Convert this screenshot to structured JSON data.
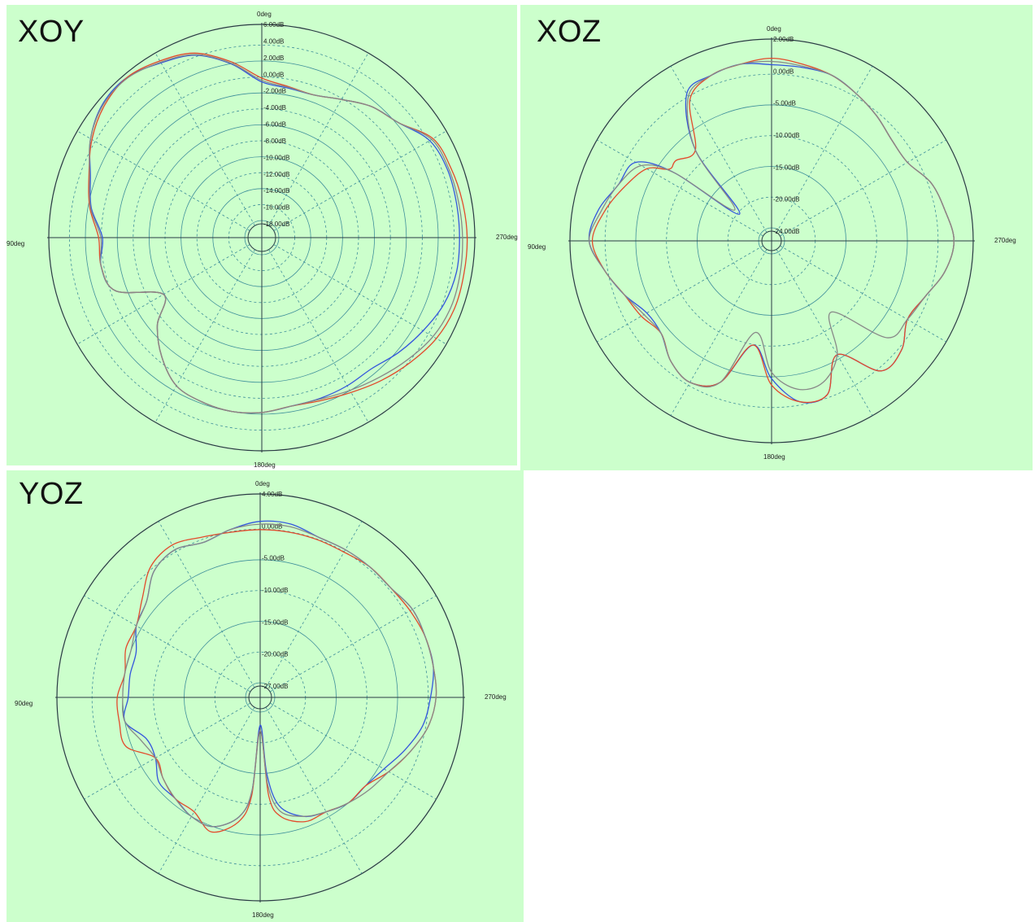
{
  "chart_data": [
    {
      "type": "polar",
      "title": "XOY",
      "angle_labels": {
        "top": "0deg",
        "left": "90deg",
        "right": "270deg",
        "bottom": "180deg"
      },
      "radial_tick_labels": [
        "6.00dB",
        "4.00dB",
        "2.00dB",
        "0.00dB",
        "-2.00dB",
        "-4.00dB",
        "-6.00dB",
        "-8.00dB",
        "-10.00dB",
        "-12.00dB",
        "-14.00dB",
        "-16.00dB",
        "-18.00dB"
      ],
      "rlim": [
        -20,
        6
      ],
      "grid": true,
      "angle_direction": "counterclockwise from top",
      "series": [
        {
          "color": "#3355dd",
          "theta": [
            0,
            10,
            20,
            30,
            40,
            50,
            60,
            70,
            80,
            90,
            100,
            110,
            120,
            130,
            140,
            150,
            160,
            170,
            180,
            190,
            200,
            210,
            220,
            230,
            240,
            250,
            260,
            270,
            280,
            290,
            300,
            310,
            320,
            330,
            340,
            350
          ],
          "r": [
            -1.5,
            1.2,
            3.5,
            4.5,
            5.5,
            5.3,
            4.0,
            2.0,
            0.8,
            -1.0,
            -0.5,
            -1.5,
            -7,
            -4,
            -1.5,
            0.5,
            1.0,
            1.2,
            1.0,
            0.5,
            0.5,
            0.5,
            0.5,
            1.5,
            2.5,
            3.5,
            4.0,
            4.0,
            4.0,
            4.0,
            3.5,
            1.5,
            0.5,
            -1.0,
            -2.0,
            -2.0
          ]
        },
        {
          "color": "#e24a2c",
          "theta": [
            0,
            10,
            20,
            30,
            40,
            50,
            60,
            70,
            80,
            90,
            100,
            110,
            120,
            130,
            140,
            150,
            160,
            170,
            180,
            190,
            200,
            210,
            220,
            230,
            240,
            250,
            260,
            270,
            280,
            290,
            300,
            310,
            320,
            330,
            340,
            350
          ],
          "r": [
            -1.0,
            1.5,
            3.8,
            4.8,
            5.5,
            5.0,
            3.8,
            2.2,
            1.0,
            -0.5,
            -0.5,
            -1.5,
            -7,
            -4,
            -1.5,
            0.5,
            1.0,
            1.2,
            1.0,
            0.5,
            0.8,
            1.5,
            2.5,
            3.5,
            4.5,
            5.0,
            5.0,
            5.0,
            4.8,
            4.5,
            4.0,
            1.5,
            0.5,
            -1.0,
            -2.0,
            -1.8
          ]
        },
        {
          "color": "#888888",
          "theta": [
            0,
            10,
            20,
            30,
            40,
            50,
            60,
            70,
            80,
            90,
            100,
            110,
            120,
            130,
            140,
            150,
            160,
            170,
            180,
            190,
            200,
            210,
            220,
            230,
            240,
            250,
            260,
            270,
            280,
            290,
            300,
            310,
            320,
            330,
            340,
            350
          ],
          "r": [
            -1.3,
            1.3,
            3.6,
            4.6,
            5.4,
            5.2,
            4.0,
            2.1,
            0.9,
            -0.8,
            -0.5,
            -1.5,
            -7,
            -4,
            -1.5,
            0.5,
            1.0,
            1.2,
            1.0,
            0.5,
            0.6,
            1.2,
            2.0,
            3.0,
            4.0,
            4.5,
            4.5,
            4.4,
            4.3,
            4.2,
            3.8,
            1.5,
            0.5,
            -1.0,
            -2.0,
            -1.9
          ]
        }
      ]
    },
    {
      "type": "polar",
      "title": "XOZ",
      "angle_labels": {
        "top": "0deg",
        "left": "90deg",
        "right": "270deg",
        "bottom": "180deg"
      },
      "radial_tick_labels": [
        "2.00dB",
        "0.00dB",
        "-5.00dB",
        "-10.00dB",
        "-15.00dB",
        "-20.00dB",
        "-24.00dB"
      ],
      "rlim": [
        -27,
        3
      ],
      "grid": true,
      "angle_direction": "counterclockwise from top",
      "series": [
        {
          "color": "#3355dd",
          "theta": [
            0,
            10,
            20,
            30,
            40,
            50,
            55,
            60,
            70,
            80,
            90,
            100,
            110,
            120,
            130,
            140,
            150,
            160,
            170,
            180,
            190,
            200,
            210,
            220,
            230,
            240,
            250,
            260,
            270,
            280,
            290,
            300,
            310,
            320,
            330,
            340,
            350
          ],
          "r": [
            -1,
            -0.5,
            -1,
            -2,
            -10,
            -22,
            -10,
            -4,
            -3,
            -1,
            0,
            -2,
            -4,
            -6,
            -6,
            -4,
            -3,
            -5,
            -12,
            -7,
            -3,
            -3,
            -8,
            -2,
            -2,
            -4,
            -3,
            -1,
            0,
            -1,
            -2,
            -4,
            -4,
            -3,
            -2,
            -1,
            -1
          ]
        },
        {
          "color": "#e24a2c",
          "theta": [
            0,
            10,
            20,
            30,
            40,
            50,
            55,
            60,
            70,
            80,
            90,
            100,
            110,
            120,
            130,
            140,
            150,
            160,
            170,
            180,
            190,
            200,
            210,
            220,
            230,
            240,
            250,
            260,
            270,
            280,
            290,
            300,
            310,
            320,
            330,
            340,
            350
          ],
          "r": [
            0,
            -0.5,
            -1,
            -3,
            -10,
            -9,
            -9,
            -6,
            -4,
            -2,
            -0.5,
            -2,
            -4,
            -5,
            -6,
            -4,
            -3,
            -5,
            -12,
            -6,
            -3,
            -3,
            -8,
            -2,
            -2,
            -4,
            -3,
            -1,
            0,
            -1,
            -2,
            -4,
            -4,
            -3,
            -2,
            -1,
            -0.5
          ]
        },
        {
          "color": "#888888",
          "theta": [
            0,
            10,
            20,
            30,
            40,
            50,
            55,
            60,
            70,
            80,
            90,
            100,
            110,
            120,
            130,
            140,
            150,
            160,
            170,
            180,
            190,
            200,
            210,
            220,
            230,
            240,
            250,
            260,
            270,
            280,
            290,
            300,
            310,
            320,
            330,
            340,
            350
          ],
          "r": [
            -0.5,
            -0.5,
            -1,
            -2.5,
            -10,
            -21,
            -10,
            -5,
            -3,
            -1.5,
            0,
            -2,
            -4,
            -5.5,
            -6,
            -4,
            -3,
            -5,
            -14,
            -8,
            -5,
            -5,
            -8,
            -14,
            -5,
            -4,
            -3,
            -1,
            0,
            -1,
            -2,
            -4,
            -4,
            -3,
            -2,
            -1,
            -0.8
          ]
        }
      ]
    },
    {
      "type": "polar",
      "title": "YOZ",
      "angle_labels": {
        "top": "0deg",
        "left": "90deg",
        "right": "270deg",
        "bottom": "180deg"
      },
      "radial_tick_labels": [
        "4.00dB",
        "0.00dB",
        "-5.00dB",
        "-10.00dB",
        "-15.00dB",
        "-20.00dB",
        "-27.00dB"
      ],
      "rlim": [
        -30,
        5
      ],
      "grid": true,
      "angle_direction": "counterclockwise from top",
      "series": [
        {
          "color": "#3355dd",
          "theta": [
            0,
            10,
            20,
            30,
            40,
            50,
            60,
            70,
            80,
            90,
            100,
            110,
            120,
            130,
            140,
            150,
            160,
            170,
            175,
            180,
            185,
            190,
            200,
            210,
            220,
            230,
            240,
            250,
            260,
            270,
            280,
            290,
            300,
            310,
            320,
            330,
            340,
            350
          ],
          "r": [
            0,
            -1,
            -2,
            -1,
            -2,
            -5,
            -6,
            -8,
            -8,
            -8,
            -7,
            -10,
            -10,
            -8,
            -8,
            -7,
            -7,
            -10,
            -15,
            -27,
            -18,
            -12,
            -9,
            -8,
            -7,
            -7,
            -6,
            -4,
            -2,
            -1,
            0,
            0,
            0,
            -1,
            -1,
            -1,
            -1,
            0
          ]
        },
        {
          "color": "#e24a2c",
          "theta": [
            0,
            10,
            20,
            30,
            40,
            50,
            60,
            70,
            80,
            90,
            100,
            110,
            120,
            130,
            140,
            150,
            160,
            170,
            175,
            180,
            185,
            190,
            200,
            210,
            220,
            230,
            240,
            250,
            260,
            270,
            280,
            290,
            300,
            310,
            320,
            330,
            340,
            350
          ],
          "r": [
            -1.5,
            -1.5,
            -1,
            0,
            -1,
            -4,
            -6,
            -6,
            -7,
            -6,
            -6,
            -6,
            -10,
            -9,
            -8,
            -8,
            -6,
            -9,
            -14,
            -26,
            -14,
            -10,
            -8,
            -8,
            -7,
            -7,
            -5,
            -3,
            -1,
            0,
            0,
            0,
            -0.5,
            -1,
            -1,
            -1.5,
            -1.5,
            -1.5
          ]
        },
        {
          "color": "#888888",
          "theta": [
            0,
            10,
            20,
            30,
            40,
            50,
            60,
            70,
            80,
            90,
            100,
            110,
            120,
            130,
            140,
            150,
            160,
            170,
            175,
            180,
            185,
            190,
            200,
            210,
            220,
            230,
            240,
            250,
            260,
            270,
            280,
            290,
            300,
            310,
            320,
            330,
            340,
            350
          ],
          "r": [
            -0.5,
            -1,
            -2,
            -1,
            -2,
            -5,
            -6,
            -7,
            -7,
            -7,
            -7,
            -9,
            -10,
            -9,
            -8,
            -7,
            -7,
            -10,
            -15,
            -26,
            -16,
            -11,
            -9,
            -8,
            -7,
            -6,
            -5,
            -3,
            -1,
            0,
            0,
            0,
            0,
            -1,
            -1,
            -1,
            -1,
            -0.5
          ]
        }
      ]
    }
  ]
}
